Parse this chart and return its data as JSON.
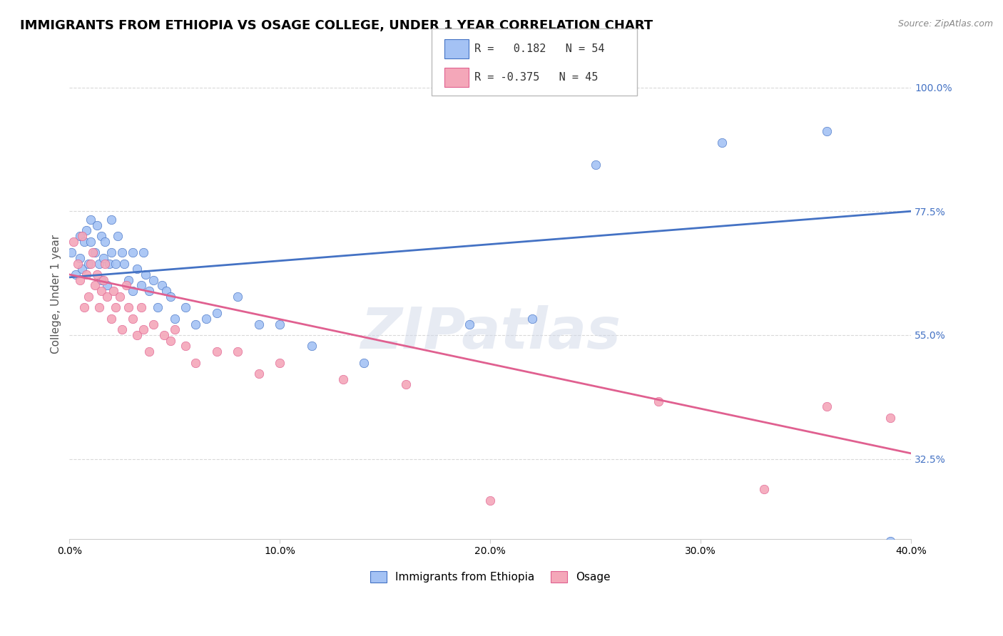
{
  "title": "IMMIGRANTS FROM ETHIOPIA VS OSAGE COLLEGE, UNDER 1 YEAR CORRELATION CHART",
  "source_text": "Source: ZipAtlas.com",
  "ylabel": "College, Under 1 year",
  "x_min": 0.0,
  "x_max": 0.4,
  "y_min": 0.18,
  "y_max": 1.07,
  "y_ticks": [
    0.325,
    0.55,
    0.775,
    1.0
  ],
  "y_tick_labels": [
    "32.5%",
    "55.0%",
    "77.5%",
    "100.0%"
  ],
  "x_ticks": [
    0.0,
    0.1,
    0.2,
    0.3,
    0.4
  ],
  "x_tick_labels": [
    "0.0%",
    "10.0%",
    "20.0%",
    "30.0%",
    "40.0%"
  ],
  "blue_color": "#a4c2f4",
  "pink_color": "#f4a7b9",
  "blue_line_color": "#4472c4",
  "pink_line_color": "#e06090",
  "legend_blue_r": "0.182",
  "legend_blue_n": "54",
  "legend_pink_r": "-0.375",
  "legend_pink_n": "45",
  "legend_label_blue": "Immigrants from Ethiopia",
  "legend_label_pink": "Osage",
  "watermark": "ZIPatlas",
  "blue_scatter_x": [
    0.001,
    0.003,
    0.005,
    0.005,
    0.006,
    0.007,
    0.008,
    0.009,
    0.01,
    0.01,
    0.012,
    0.013,
    0.014,
    0.015,
    0.015,
    0.016,
    0.017,
    0.018,
    0.019,
    0.02,
    0.02,
    0.022,
    0.023,
    0.025,
    0.026,
    0.028,
    0.03,
    0.03,
    0.032,
    0.034,
    0.035,
    0.036,
    0.038,
    0.04,
    0.042,
    0.044,
    0.046,
    0.048,
    0.05,
    0.055,
    0.06,
    0.065,
    0.07,
    0.08,
    0.09,
    0.1,
    0.115,
    0.14,
    0.19,
    0.22,
    0.25,
    0.31,
    0.36,
    0.39
  ],
  "blue_scatter_y": [
    0.7,
    0.66,
    0.69,
    0.73,
    0.67,
    0.72,
    0.74,
    0.68,
    0.72,
    0.76,
    0.7,
    0.75,
    0.68,
    0.65,
    0.73,
    0.69,
    0.72,
    0.64,
    0.68,
    0.7,
    0.76,
    0.68,
    0.73,
    0.7,
    0.68,
    0.65,
    0.7,
    0.63,
    0.67,
    0.64,
    0.7,
    0.66,
    0.63,
    0.65,
    0.6,
    0.64,
    0.63,
    0.62,
    0.58,
    0.6,
    0.57,
    0.58,
    0.59,
    0.62,
    0.57,
    0.57,
    0.53,
    0.5,
    0.57,
    0.58,
    0.86,
    0.9,
    0.92,
    0.175
  ],
  "pink_scatter_x": [
    0.002,
    0.004,
    0.005,
    0.006,
    0.007,
    0.008,
    0.009,
    0.01,
    0.011,
    0.012,
    0.013,
    0.014,
    0.015,
    0.016,
    0.017,
    0.018,
    0.02,
    0.021,
    0.022,
    0.024,
    0.025,
    0.027,
    0.028,
    0.03,
    0.032,
    0.034,
    0.035,
    0.038,
    0.04,
    0.045,
    0.048,
    0.05,
    0.055,
    0.06,
    0.07,
    0.08,
    0.09,
    0.1,
    0.13,
    0.16,
    0.2,
    0.28,
    0.33,
    0.36,
    0.39
  ],
  "pink_scatter_y": [
    0.72,
    0.68,
    0.65,
    0.73,
    0.6,
    0.66,
    0.62,
    0.68,
    0.7,
    0.64,
    0.66,
    0.6,
    0.63,
    0.65,
    0.68,
    0.62,
    0.58,
    0.63,
    0.6,
    0.62,
    0.56,
    0.64,
    0.6,
    0.58,
    0.55,
    0.6,
    0.56,
    0.52,
    0.57,
    0.55,
    0.54,
    0.56,
    0.53,
    0.5,
    0.52,
    0.52,
    0.48,
    0.5,
    0.47,
    0.46,
    0.25,
    0.43,
    0.27,
    0.42,
    0.4
  ],
  "background_color": "#ffffff",
  "grid_color": "#d9d9d9",
  "title_color": "#000000",
  "title_fontsize": 13,
  "axis_label_fontsize": 11
}
